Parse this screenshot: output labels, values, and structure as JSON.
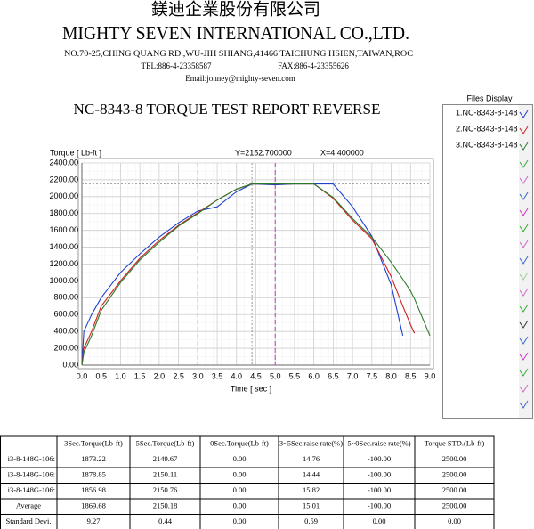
{
  "header": {
    "company_cn": "鎂迪企業股份有限公司",
    "company_en": "MIGHTY SEVEN INTERNATIONAL CO.,LTD.",
    "address": "NO.70-25,CHING QUANG RD.,WU-JIH SHIANG,41466 TAICHUNG HSIEN,TAIWAN,ROC",
    "tel": "TEL:886-4-23358587",
    "fax": "FAX:886-4-23355626",
    "email": "Email:jonney@mighty-seven.com"
  },
  "report_title": "NC-8343-8 TORQUE TEST REPORT REVERSE",
  "chart_data": {
    "type": "line",
    "y_label": "Torque [ Lb-ft ]",
    "x_label": "Time [ sec ]",
    "readout_y": "Y=2152.700000",
    "readout_x": "X=4.400000",
    "xlim": [
      0,
      9
    ],
    "ylim": [
      0,
      2400
    ],
    "xticks": [
      {
        "value": 0,
        "label": "0.0"
      },
      0.5,
      {
        "value": 1,
        "label": "1.0"
      },
      1.5,
      {
        "value": 2,
        "label": "2.0"
      },
      2.5,
      {
        "value": 3,
        "label": "3.0"
      },
      3.5,
      {
        "value": 4,
        "label": "4.0"
      },
      4.5,
      {
        "value": 5,
        "label": "5.0"
      },
      5.5,
      {
        "value": 6,
        "label": "6.0"
      },
      6.5,
      {
        "value": 7,
        "label": "7.0"
      },
      7.5,
      {
        "value": 8,
        "label": "8.0"
      },
      8.5,
      {
        "value": 9,
        "label": "9.0"
      }
    ],
    "yticks": [
      {
        "value": 0,
        "label": "0.00"
      },
      {
        "value": 200,
        "label": "200.00"
      },
      {
        "value": 400,
        "label": "400.00"
      },
      {
        "value": 600,
        "label": "600.00"
      },
      {
        "value": 800,
        "label": "800.00"
      },
      {
        "value": 1000,
        "label": "1000.00"
      },
      {
        "value": 1200,
        "label": "1200.00"
      },
      {
        "value": 1400,
        "label": "1400.00"
      },
      {
        "value": 1600,
        "label": "1600.00"
      },
      {
        "value": 1800,
        "label": "1800.00"
      },
      {
        "value": 2000,
        "label": "2000.00"
      },
      {
        "value": 2200,
        "label": "2200.00"
      },
      {
        "value": 2400,
        "label": "2400.00"
      }
    ],
    "grid": true,
    "markers": [
      {
        "x": 3,
        "color": "#2e6b2e"
      },
      {
        "x": 5,
        "color": "#cc33cc"
      }
    ],
    "cursor": {
      "x": 4.4,
      "y": 2152.7,
      "color": "#999999"
    },
    "x": [
      0,
      0.05,
      0.25,
      0.5,
      1,
      1.5,
      2,
      2.5,
      3,
      3.5,
      4,
      4.4,
      5,
      5.5,
      6,
      6.5,
      7,
      7.5,
      8,
      8.3,
      8.5,
      8.6,
      9
    ],
    "series": [
      {
        "name": "1.NC-8343-8-148",
        "color": "#2040d0",
        "values": [
          0,
          400,
          600,
          800,
          1100,
          1320,
          1520,
          1690,
          1830,
          1880,
          2060,
          2150,
          2140,
          2150,
          2150,
          2150,
          1880,
          1530,
          950,
          350,
          null,
          null,
          null
        ]
      },
      {
        "name": "2.NC-8343-8-148",
        "color": "#d02020",
        "values": [
          0,
          200,
          400,
          700,
          1000,
          1270,
          1480,
          1660,
          1810,
          1960,
          2090,
          2150,
          2150,
          2150,
          2150,
          1980,
          1720,
          1500,
          1050,
          700,
          480,
          380,
          null
        ]
      },
      {
        "name": "3.NC-8343-8-148",
        "color": "#2a7a2a",
        "values": [
          0,
          150,
          350,
          650,
          980,
          1250,
          1460,
          1650,
          1800,
          1960,
          2090,
          2150,
          2150,
          2150,
          2150,
          1990,
          1740,
          1520,
          1220,
          1020,
          880,
          790,
          350
        ]
      }
    ]
  },
  "files_display": {
    "title": "Files Display"
  },
  "table": {
    "headers": [
      "3Sec.Torque(Lb-ft)",
      "5Sec.Torque(Lb-ft)",
      "0Sec.Torque(Lb-ft)",
      "3~5Sec.raise rate(%)",
      "5~0Sec.raise rate(%)",
      "Torque STD.(Lb-ft)"
    ],
    "rows": [
      [
        "i3-8-148G-106:",
        "1873.22",
        "2149.67",
        "0.00",
        "14.76",
        "-100.00",
        "2500.00"
      ],
      [
        "i3-8-148G-106:",
        "1878.85",
        "2150.11",
        "0.00",
        "14.44",
        "-100.00",
        "2500.00"
      ],
      [
        "i3-8-148G-106:",
        "1856.98",
        "2150.76",
        "0.00",
        "15.82",
        "-100.00",
        "2500.00"
      ],
      [
        "Average",
        "1869.68",
        "2150.18",
        "0.00",
        "15.01",
        "-100.00",
        "2500.00"
      ],
      [
        "Standard Devi.",
        "9.27",
        "0.44",
        "0.00",
        "0.59",
        "0.00",
        "0.00"
      ]
    ]
  }
}
